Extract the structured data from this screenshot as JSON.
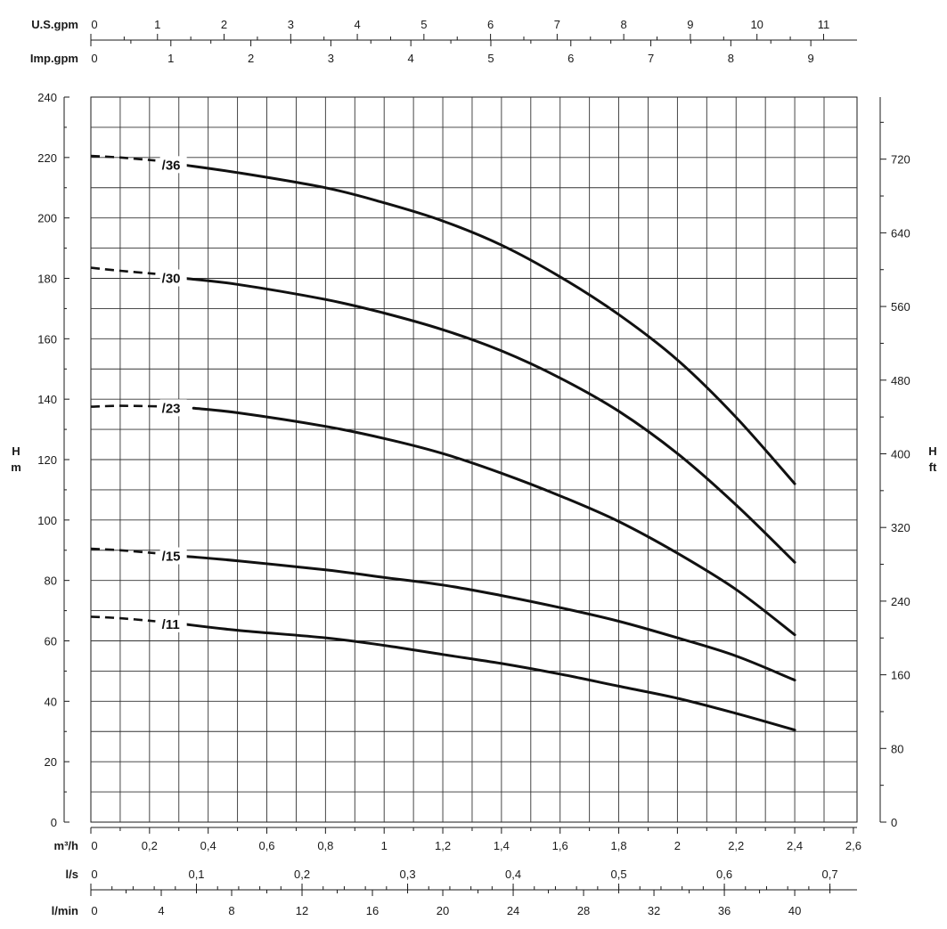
{
  "chart_data": {
    "type": "line",
    "title": "",
    "x_main": {
      "label": "m³/h",
      "range": [
        0,
        2.6
      ],
      "ticks": [
        "0",
        "0,2",
        "0,4",
        "0,6",
        "0,8",
        "1",
        "1,2",
        "1,4",
        "1,6",
        "1,8",
        "2",
        "2,2",
        "2,4",
        "2,6"
      ]
    },
    "x_ls": {
      "label": "l/s",
      "ticks": [
        "0",
        "0,1",
        "0,2",
        "0,3",
        "0,4",
        "0,5",
        "0,6",
        "0,7"
      ]
    },
    "x_lmin": {
      "label": "l/min",
      "ticks": [
        "0",
        "4",
        "8",
        "12",
        "16",
        "20",
        "24",
        "28",
        "32",
        "36",
        "40"
      ]
    },
    "x_usgpm": {
      "label": "U.S.gpm",
      "ticks": [
        "0",
        "1",
        "2",
        "3",
        "4",
        "5",
        "6",
        "7",
        "8",
        "9",
        "10",
        "11"
      ]
    },
    "x_impgpm": {
      "label": "Imp.gpm",
      "ticks": [
        "0",
        "1",
        "2",
        "3",
        "4",
        "5",
        "6",
        "7",
        "8",
        "9"
      ]
    },
    "y_left": {
      "label": "H",
      "unit": "m",
      "range": [
        0,
        240
      ],
      "ticks": [
        "0",
        "20",
        "40",
        "60",
        "80",
        "100",
        "120",
        "140",
        "160",
        "180",
        "200",
        "220",
        "240"
      ]
    },
    "y_right": {
      "label": "H",
      "unit": "ft",
      "ticks": [
        "0",
        "80",
        "160",
        "240",
        "320",
        "400",
        "480",
        "560",
        "640",
        "720"
      ]
    },
    "grid": true,
    "series": [
      {
        "name": "/36",
        "dashed": [
          [
            0,
            220.5
          ],
          [
            0.1,
            220
          ],
          [
            0.22,
            219
          ]
        ],
        "values": [
          [
            0.32,
            217.5
          ],
          [
            0.5,
            215
          ],
          [
            0.8,
            210
          ],
          [
            1.0,
            205
          ],
          [
            1.2,
            199
          ],
          [
            1.4,
            191
          ],
          [
            1.6,
            180.5
          ],
          [
            1.8,
            168
          ],
          [
            2.0,
            153
          ],
          [
            2.2,
            134
          ],
          [
            2.4,
            112
          ]
        ]
      },
      {
        "name": "/30",
        "dashed": [
          [
            0,
            183.5
          ],
          [
            0.1,
            182.5
          ],
          [
            0.22,
            181.5
          ]
        ],
        "values": [
          [
            0.32,
            180
          ],
          [
            0.5,
            178
          ],
          [
            0.8,
            173
          ],
          [
            1.0,
            168.5
          ],
          [
            1.2,
            163
          ],
          [
            1.4,
            156
          ],
          [
            1.6,
            147
          ],
          [
            1.8,
            136
          ],
          [
            2.0,
            122
          ],
          [
            2.2,
            105
          ],
          [
            2.4,
            86
          ]
        ]
      },
      {
        "name": "/23",
        "dashed": [
          [
            0,
            137.5
          ],
          [
            0.1,
            137.8
          ],
          [
            0.25,
            137.6
          ]
        ],
        "values": [
          [
            0.35,
            137
          ],
          [
            0.5,
            135.5
          ],
          [
            0.8,
            131
          ],
          [
            1.0,
            127
          ],
          [
            1.2,
            122
          ],
          [
            1.4,
            115.5
          ],
          [
            1.6,
            108
          ],
          [
            1.8,
            99.5
          ],
          [
            2.0,
            89
          ],
          [
            2.2,
            77
          ],
          [
            2.4,
            62
          ]
        ]
      },
      {
        "name": "/15",
        "dashed": [
          [
            0,
            90.5
          ],
          [
            0.1,
            90
          ],
          [
            0.22,
            89
          ]
        ],
        "values": [
          [
            0.32,
            88
          ],
          [
            0.5,
            86.5
          ],
          [
            0.8,
            83.5
          ],
          [
            1.0,
            81
          ],
          [
            1.2,
            78.5
          ],
          [
            1.4,
            75
          ],
          [
            1.6,
            71
          ],
          [
            1.8,
            66.5
          ],
          [
            2.0,
            61
          ],
          [
            2.2,
            55
          ],
          [
            2.4,
            47
          ]
        ]
      },
      {
        "name": "/11",
        "dashed": [
          [
            0,
            68
          ],
          [
            0.1,
            67.5
          ],
          [
            0.22,
            66.5
          ]
        ],
        "values": [
          [
            0.32,
            65.5
          ],
          [
            0.5,
            63.5
          ],
          [
            0.8,
            61
          ],
          [
            1.0,
            58.5
          ],
          [
            1.2,
            55.5
          ],
          [
            1.4,
            52.5
          ],
          [
            1.6,
            49
          ],
          [
            1.8,
            45
          ],
          [
            2.0,
            41
          ],
          [
            2.2,
            36
          ],
          [
            2.4,
            30.5
          ]
        ]
      }
    ]
  }
}
